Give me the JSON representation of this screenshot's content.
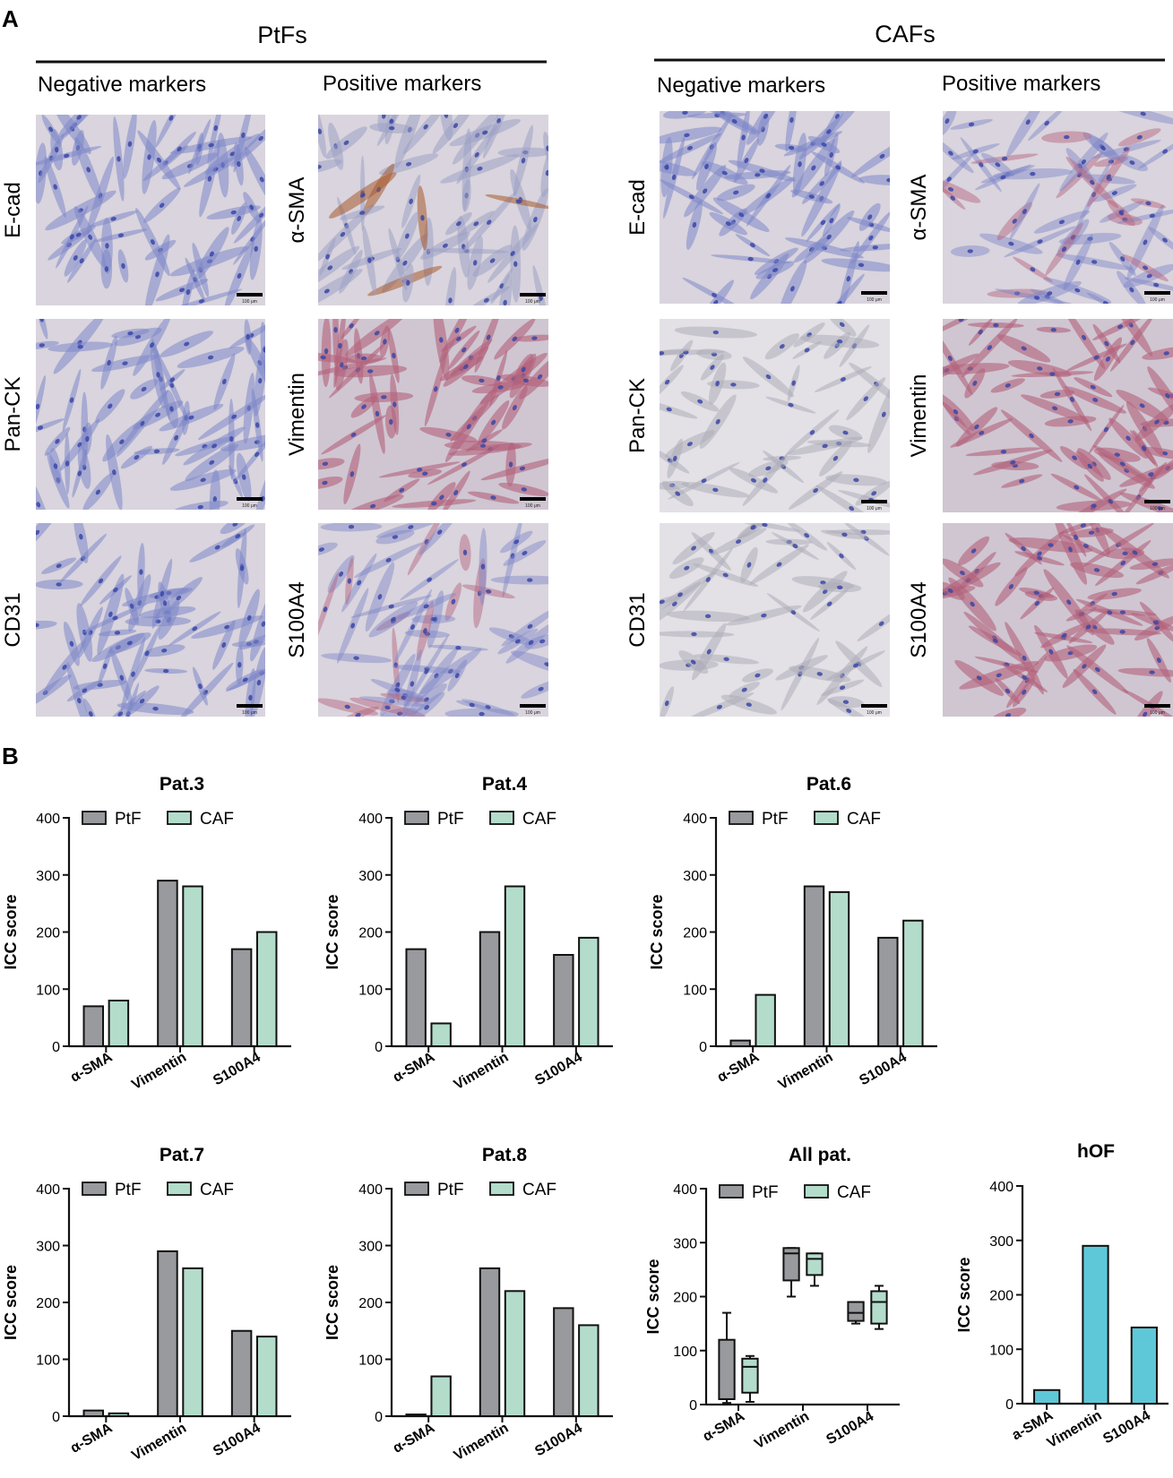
{
  "panel_a": {
    "letter": "A",
    "groups": [
      {
        "title": "PtFs",
        "negative_header": "Negative markers",
        "positive_header": "Positive markers",
        "negative_rows": [
          "E-cad",
          "Pan-CK",
          "CD31"
        ],
        "positive_rows": [
          "α-SMA",
          "Vimentin",
          "S100A4"
        ]
      },
      {
        "title": "CAFs",
        "negative_header": "Negative markers",
        "positive_header": "Positive markers",
        "negative_rows": [
          "E-cad",
          "Pan-CK",
          "CD31"
        ],
        "positive_rows": [
          "α-SMA",
          "Vimentin",
          "S100A4"
        ]
      }
    ],
    "scale_bar_label": "100 μm",
    "colors": {
      "background": "#d9d4dd",
      "nuclei": "#3b47a6",
      "hematoxylin_cells": "#7d86c8",
      "positive_stain": "#b3607a",
      "dab_stain": "#a85a2c"
    }
  },
  "panel_b": {
    "letter": "B",
    "colors": {
      "ptf": "#999a9e",
      "caf": "#b3dccb",
      "hof": "#5ec8d8",
      "stroke": "#111111"
    }
  },
  "chart_data": [
    {
      "type": "bar",
      "title": "Pat.3",
      "categories": [
        "α-SMA",
        "Vimentin",
        "S100A4"
      ],
      "series": [
        {
          "name": "PtF",
          "values": [
            70,
            290,
            170
          ]
        },
        {
          "name": "CAF",
          "values": [
            80,
            280,
            200
          ]
        }
      ],
      "ylabel": "ICC score",
      "ylim": [
        0,
        400
      ],
      "yticks": [
        0,
        100,
        200,
        300,
        400
      ],
      "legend": "top"
    },
    {
      "type": "bar",
      "title": "Pat.4",
      "categories": [
        "α-SMA",
        "Vimentin",
        "S100A4"
      ],
      "series": [
        {
          "name": "PtF",
          "values": [
            170,
            200,
            160
          ]
        },
        {
          "name": "CAF",
          "values": [
            40,
            280,
            190
          ]
        }
      ],
      "ylabel": "ICC score",
      "ylim": [
        0,
        400
      ],
      "yticks": [
        0,
        100,
        200,
        300,
        400
      ],
      "legend": "top"
    },
    {
      "type": "bar",
      "title": "Pat.6",
      "categories": [
        "α-SMA",
        "Vimentin",
        "S100A4"
      ],
      "series": [
        {
          "name": "PtF",
          "values": [
            10,
            280,
            190
          ]
        },
        {
          "name": "CAF",
          "values": [
            90,
            270,
            220
          ]
        }
      ],
      "ylabel": "ICC score",
      "ylim": [
        0,
        400
      ],
      "yticks": [
        0,
        100,
        200,
        300,
        400
      ],
      "legend": "top"
    },
    {
      "type": "bar",
      "title": "Pat.7",
      "categories": [
        "α-SMA",
        "Vimentin",
        "S100A4"
      ],
      "series": [
        {
          "name": "PtF",
          "values": [
            10,
            290,
            150
          ]
        },
        {
          "name": "CAF",
          "values": [
            5,
            260,
            140
          ]
        }
      ],
      "ylabel": "ICC score",
      "ylim": [
        0,
        400
      ],
      "yticks": [
        0,
        100,
        200,
        300,
        400
      ],
      "legend": "top"
    },
    {
      "type": "bar",
      "title": "Pat.8",
      "categories": [
        "α-SMA",
        "Vimentin",
        "S100A4"
      ],
      "series": [
        {
          "name": "PtF",
          "values": [
            3,
            260,
            190
          ]
        },
        {
          "name": "CAF",
          "values": [
            70,
            220,
            160
          ]
        }
      ],
      "ylabel": "ICC score",
      "ylim": [
        0,
        400
      ],
      "yticks": [
        0,
        100,
        200,
        300,
        400
      ],
      "legend": "top"
    },
    {
      "type": "box",
      "title": "All pat.",
      "categories": [
        "α-SMA",
        "Vimentin",
        "S100A4"
      ],
      "series": [
        {
          "name": "PtF",
          "boxes": [
            {
              "min": 3,
              "q1": 10,
              "median": 10,
              "q3": 120,
              "max": 170
            },
            {
              "min": 200,
              "q1": 230,
              "median": 280,
              "q3": 290,
              "max": 290
            },
            {
              "min": 150,
              "q1": 155,
              "median": 170,
              "q3": 190,
              "max": 190
            }
          ]
        },
        {
          "name": "CAF",
          "boxes": [
            {
              "min": 5,
              "q1": 22,
              "median": 70,
              "q3": 85,
              "max": 90
            },
            {
              "min": 220,
              "q1": 240,
              "median": 270,
              "q3": 280,
              "max": 280
            },
            {
              "min": 140,
              "q1": 150,
              "median": 190,
              "q3": 210,
              "max": 220
            }
          ]
        }
      ],
      "ylabel": "ICC score",
      "ylim": [
        0,
        400
      ],
      "yticks": [
        0,
        100,
        200,
        300,
        400
      ],
      "legend": "top"
    },
    {
      "type": "bar",
      "title": "hOF",
      "categories": [
        "a-SMA",
        "Vimentin",
        "S100A4"
      ],
      "series": [
        {
          "name": "hOF",
          "values": [
            25,
            290,
            140
          ]
        }
      ],
      "ylabel": "ICC score",
      "ylim": [
        0,
        400
      ],
      "yticks": [
        0,
        100,
        200,
        300,
        400
      ]
    }
  ]
}
